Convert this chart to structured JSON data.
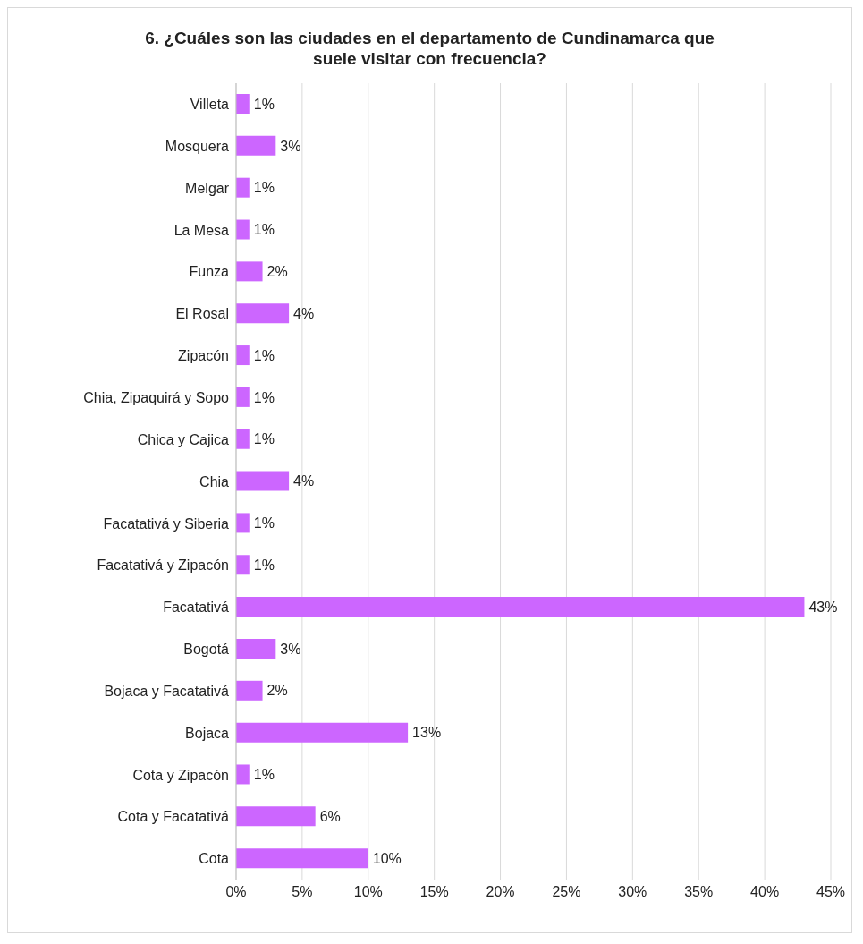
{
  "chart_data": {
    "type": "bar",
    "orientation": "horizontal",
    "title": "6. ¿Cuáles son las ciudades en el departamento de Cundinamarca que suele visitar con frecuencia?",
    "categories": [
      "Villeta",
      "Mosquera",
      "Melgar",
      "La Mesa",
      "Funza",
      "El Rosal",
      "Zipacón",
      "Chia, Zipaquirá y Sopo",
      "Chica y Cajica",
      "Chia",
      "Facatativá y Siberia",
      "Facatativá y Zipacón",
      "Facatativá",
      "Bogotá",
      "Bojaca y Facatativá",
      "Bojaca",
      "Cota y Zipacón",
      "Cota y Facatativá",
      "Cota"
    ],
    "values": [
      1,
      3,
      1,
      1,
      2,
      4,
      1,
      1,
      1,
      4,
      1,
      1,
      43,
      3,
      2,
      13,
      1,
      6,
      10
    ],
    "value_labels": [
      "1%",
      "3%",
      "1%",
      "1%",
      "2%",
      "4%",
      "1%",
      "1%",
      "1%",
      "4%",
      "1%",
      "1%",
      "43%",
      "3%",
      "2%",
      "13%",
      "1%",
      "6%",
      "10%"
    ],
    "color": "#cc66ff",
    "xlim": [
      0,
      45
    ],
    "xticks": [
      {
        "value": 0,
        "label": "0%"
      },
      {
        "value": 5,
        "label": "5%"
      },
      {
        "value": 10,
        "label": "10%"
      },
      {
        "value": 15,
        "label": "15%"
      },
      {
        "value": 20,
        "label": "20%"
      },
      {
        "value": 25,
        "label": "25%"
      },
      {
        "value": 30,
        "label": "30%"
      },
      {
        "value": 35,
        "label": "35%"
      },
      {
        "value": 40,
        "label": "40%"
      },
      {
        "value": 45,
        "label": "45%"
      }
    ],
    "grid": "x",
    "legend": false
  }
}
